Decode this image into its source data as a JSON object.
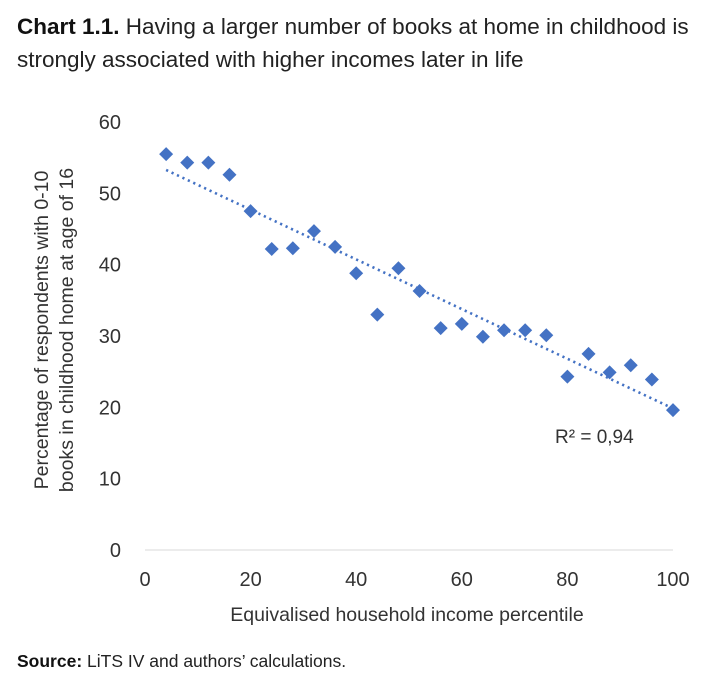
{
  "title": {
    "label": "Chart 1.1.",
    "text": " Having a larger number of books at home in childhood is strongly associated with higher incomes later in life"
  },
  "source": {
    "label": "Source:",
    "text": " LiTS IV and authors’ calculations."
  },
  "chart_data": {
    "type": "scatter",
    "title": "Having a larger number of books at home in childhood is strongly associated with higher incomes later in life",
    "xlabel": "Equivalised household income percentile",
    "ylabel_lines": [
      "Percentage of respondents with 0-10",
      "books in childhood home at age of 16"
    ],
    "xlim": [
      0,
      100
    ],
    "ylim": [
      0,
      60
    ],
    "xticks": [
      0,
      20,
      40,
      60,
      80,
      100
    ],
    "yticks": [
      0,
      10,
      20,
      30,
      40,
      50,
      60
    ],
    "grid": false,
    "marker_color": "#4472C4",
    "trendline_color": "#4472C4",
    "points": [
      {
        "x": 4,
        "y": 55.5
      },
      {
        "x": 8,
        "y": 54.3
      },
      {
        "x": 12,
        "y": 54.3
      },
      {
        "x": 16,
        "y": 52.6
      },
      {
        "x": 20,
        "y": 47.5
      },
      {
        "x": 24,
        "y": 42.2
      },
      {
        "x": 28,
        "y": 42.3
      },
      {
        "x": 32,
        "y": 44.7
      },
      {
        "x": 36,
        "y": 42.5
      },
      {
        "x": 40,
        "y": 38.8
      },
      {
        "x": 44,
        "y": 33.0
      },
      {
        "x": 48,
        "y": 39.5
      },
      {
        "x": 52,
        "y": 36.3
      },
      {
        "x": 56,
        "y": 31.1
      },
      {
        "x": 60,
        "y": 31.7
      },
      {
        "x": 64,
        "y": 29.9
      },
      {
        "x": 68,
        "y": 30.8
      },
      {
        "x": 72,
        "y": 30.8
      },
      {
        "x": 76,
        "y": 30.1
      },
      {
        "x": 80,
        "y": 24.3
      },
      {
        "x": 84,
        "y": 27.5
      },
      {
        "x": 88,
        "y": 24.9
      },
      {
        "x": 92,
        "y": 25.9
      },
      {
        "x": 96,
        "y": 23.9
      },
      {
        "x": 100,
        "y": 19.6
      }
    ],
    "trendline": {
      "type": "linear",
      "style": "dotted",
      "r2_label": "R² = 0,94"
    }
  }
}
